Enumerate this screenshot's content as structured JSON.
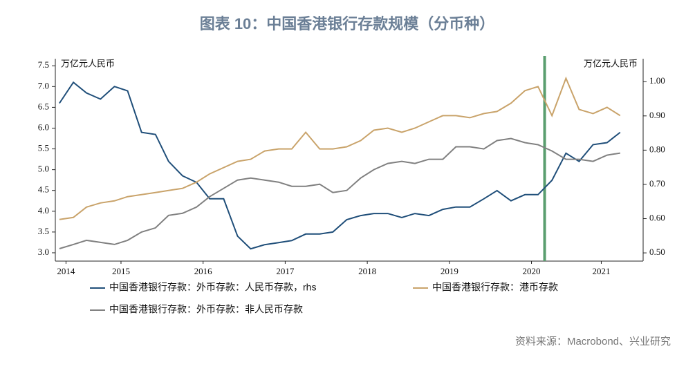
{
  "chart_data": {
    "type": "line",
    "title": "图表 10：中国香港银行存款规模（分币种）",
    "y_label": "万亿元人民币",
    "y2_label": "万亿元人民币",
    "source": "资料来源：Macrobond、兴业研究",
    "x": [
      2014.75,
      2014.92,
      2015.08,
      2015.25,
      2015.42,
      2015.58,
      2015.75,
      2015.92,
      2016.08,
      2016.25,
      2016.42,
      2016.58,
      2016.75,
      2016.92,
      2017.08,
      2017.25,
      2017.42,
      2017.58,
      2017.75,
      2017.92,
      2018.08,
      2018.25,
      2018.42,
      2018.58,
      2018.75,
      2018.92,
      2019.08,
      2019.25,
      2019.42,
      2019.58,
      2019.75,
      2019.92,
      2020.08,
      2020.25,
      2020.42,
      2020.58,
      2020.75,
      2020.92,
      2021.08,
      2021.25,
      2021.42,
      2021.58
    ],
    "xlim": [
      2014.7,
      2021.86
    ],
    "xticks": [
      {
        "value": 2014.83,
        "label": "2014"
      },
      {
        "value": 2015.5,
        "label": "2015"
      },
      {
        "value": 2016.5,
        "label": "2016"
      },
      {
        "value": 2017.5,
        "label": "2017"
      },
      {
        "value": 2018.5,
        "label": "2018"
      },
      {
        "value": 2019.5,
        "label": "2019"
      },
      {
        "value": 2020.5,
        "label": "2020"
      },
      {
        "value": 2021.35,
        "label": "2021"
      }
    ],
    "ylim": [
      2.8,
      7.67
    ],
    "yticks": [
      {
        "value": 3,
        "label": "3.0"
      },
      3.5,
      {
        "value": 4,
        "label": "4.0"
      },
      4.5,
      {
        "value": 5,
        "label": "5.0"
      },
      5.5,
      {
        "value": 6,
        "label": "6.0"
      },
      6.5,
      {
        "value": 7,
        "label": "7.0"
      },
      7.5
    ],
    "y2lim": [
      0.476,
      1.067
    ],
    "y2ticks": [
      {
        "value": 0.5,
        "label": "0.50"
      },
      {
        "value": 0.6,
        "label": "0.60"
      },
      {
        "value": 0.7,
        "label": "0.70"
      },
      {
        "value": 0.8,
        "label": "0.80"
      },
      {
        "value": 0.9,
        "label": "0.90"
      },
      {
        "value": 1,
        "label": "1.00"
      }
    ],
    "vline": {
      "x": 2020.66,
      "color": "#5a9e6f"
    },
    "series": [
      {
        "name": "中国香港银行存款：外币存款：人民币存款，rhs",
        "color": "#1f4e79",
        "axis": "y2",
        "values": [
          0.937,
          0.998,
          0.967,
          0.949,
          0.986,
          0.973,
          0.852,
          0.846,
          0.767,
          0.725,
          0.706,
          0.658,
          0.658,
          0.549,
          0.512,
          0.524,
          0.53,
          0.536,
          0.555,
          0.555,
          0.561,
          0.597,
          0.609,
          0.615,
          0.615,
          0.603,
          0.615,
          0.609,
          0.627,
          0.634,
          0.634,
          0.658,
          0.682,
          0.652,
          0.67,
          0.67,
          0.712,
          0.791,
          0.767,
          0.816,
          0.822,
          0.852
        ]
      },
      {
        "name": "中国香港银行存款：港币存款",
        "color": "#c9a36a",
        "values": [
          3.8,
          3.85,
          4.1,
          4.2,
          4.25,
          4.35,
          4.4,
          4.45,
          4.5,
          4.55,
          4.7,
          4.9,
          5.05,
          5.2,
          5.25,
          5.45,
          5.5,
          5.5,
          5.9,
          5.5,
          5.5,
          5.55,
          5.7,
          5.95,
          6.0,
          5.9,
          6.0,
          6.15,
          6.3,
          6.3,
          6.25,
          6.35,
          6.4,
          6.6,
          6.9,
          7.0,
          6.3,
          7.2,
          6.45,
          6.35,
          6.5,
          6.3
        ]
      },
      {
        "name": "中国香港银行存款：外币存款：非人民币存款",
        "color": "#808080",
        "values": [
          3.1,
          3.2,
          3.3,
          3.25,
          3.2,
          3.3,
          3.5,
          3.6,
          3.9,
          3.95,
          4.1,
          4.35,
          4.55,
          4.75,
          4.8,
          4.75,
          4.7,
          4.6,
          4.6,
          4.65,
          4.45,
          4.5,
          4.8,
          5.0,
          5.15,
          5.2,
          5.15,
          5.25,
          5.25,
          5.55,
          5.55,
          5.5,
          5.7,
          5.75,
          5.65,
          5.6,
          5.45,
          5.25,
          5.25,
          5.2,
          5.35,
          5.4
        ]
      }
    ]
  }
}
